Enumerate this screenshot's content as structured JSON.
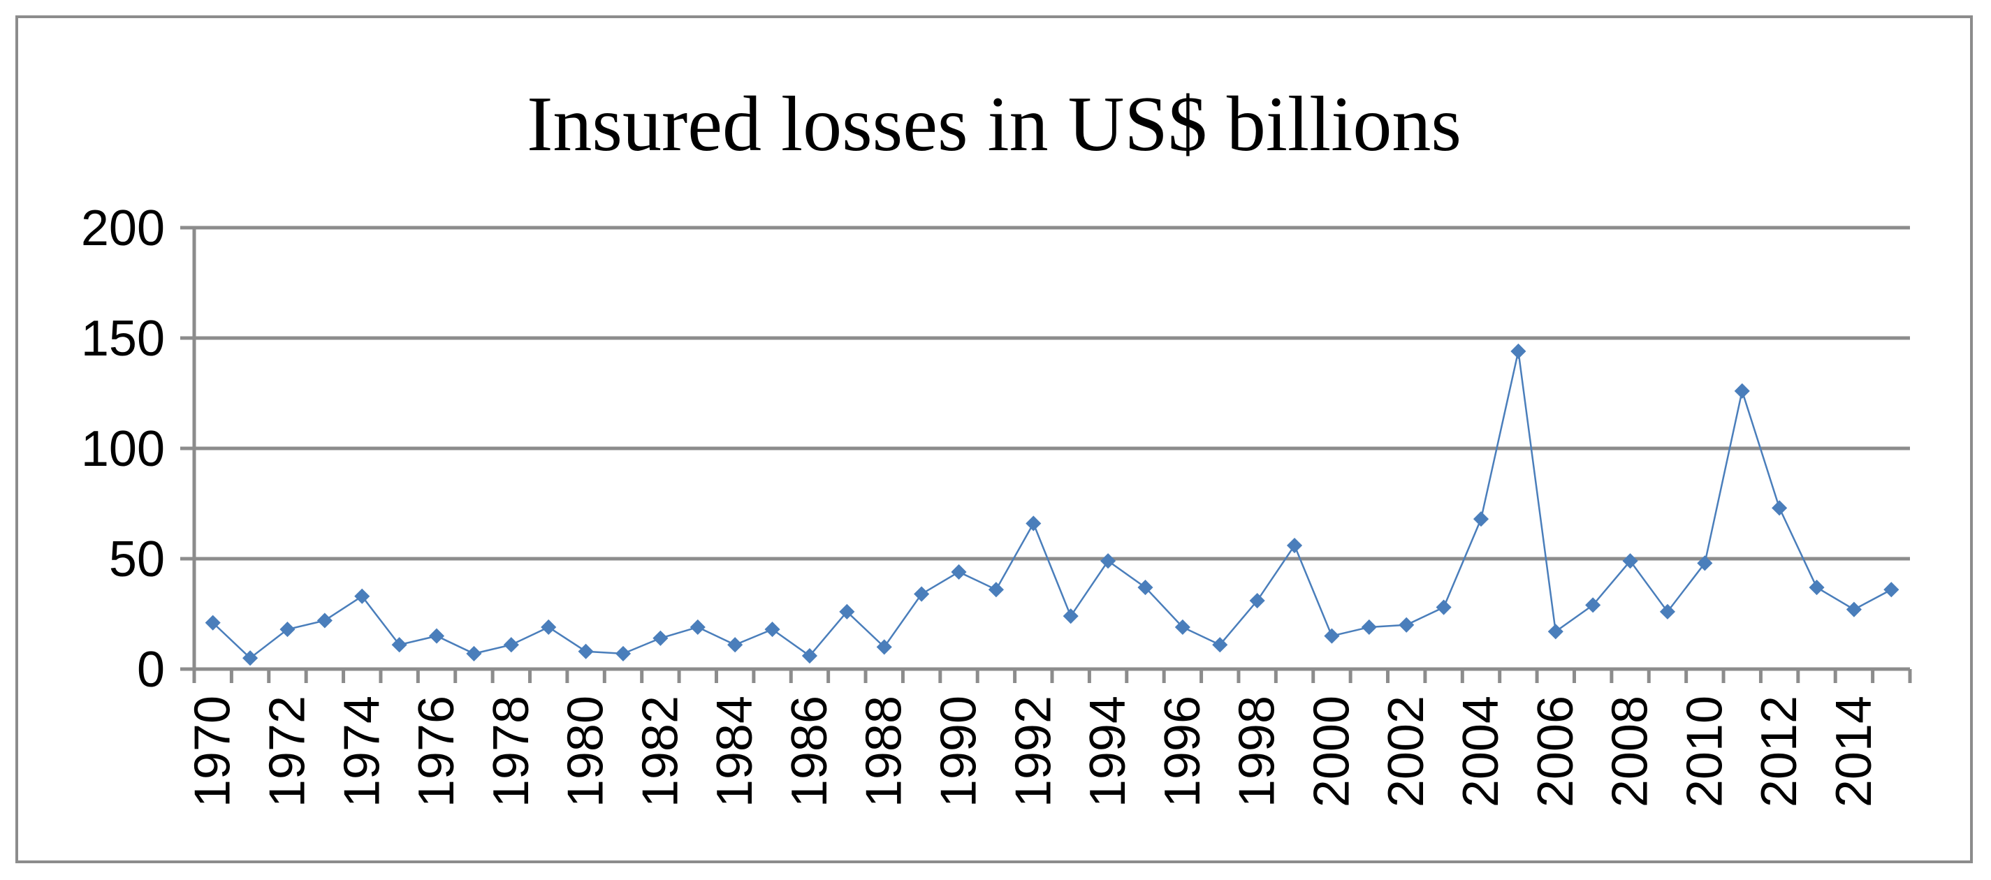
{
  "chart_data": {
    "type": "line",
    "title": "Insured losses in US$ billions",
    "xlabel": "",
    "ylabel": "",
    "ylim": [
      0,
      200
    ],
    "yticks": [
      0,
      50,
      100,
      150,
      200
    ],
    "xtick_labels": [
      "1970",
      "1972",
      "1974",
      "1976",
      "1978",
      "1980",
      "1982",
      "1984",
      "1986",
      "1988",
      "1990",
      "1992",
      "1994",
      "1996",
      "1998",
      "2000",
      "2002",
      "2004",
      "2006",
      "2008",
      "2010",
      "2012",
      "2014"
    ],
    "grid": true,
    "legend": "none",
    "x": [
      1970,
      1971,
      1972,
      1973,
      1974,
      1975,
      1976,
      1977,
      1978,
      1979,
      1980,
      1981,
      1982,
      1983,
      1984,
      1985,
      1986,
      1987,
      1988,
      1989,
      1990,
      1991,
      1992,
      1993,
      1994,
      1995,
      1996,
      1997,
      1998,
      1999,
      2000,
      2001,
      2002,
      2003,
      2004,
      2005,
      2006,
      2007,
      2008,
      2009,
      2010,
      2011,
      2012,
      2013,
      2014,
      2015
    ],
    "series": [
      {
        "color": "#4a7ebb",
        "values": [
          21,
          5,
          18,
          22,
          33,
          11,
          15,
          7,
          11,
          19,
          8,
          7,
          14,
          19,
          11,
          18,
          6,
          26,
          10,
          34,
          44,
          36,
          66,
          24,
          49,
          37,
          19,
          11,
          31,
          56,
          15,
          19,
          20,
          28,
          68,
          144,
          17,
          29,
          49,
          26,
          48,
          126,
          73,
          37,
          27,
          36
        ]
      }
    ]
  }
}
